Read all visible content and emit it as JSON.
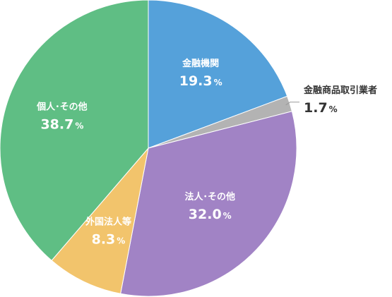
{
  "chart_data": {
    "type": "pie",
    "start_angle_deg": 0,
    "direction": "clockwise",
    "slices": [
      {
        "label": "金融機関",
        "value": 19.3,
        "value_text": "19.3",
        "unit": "%",
        "color": "#55a1da",
        "text_color": "#ffffff",
        "label_placement": "inside"
      },
      {
        "label": "金融商品取引業者",
        "value": 1.7,
        "value_text": "1.7",
        "unit": "%",
        "color": "#b3b3b3",
        "text_color": "#333333",
        "label_placement": "outside"
      },
      {
        "label": "法人･その他",
        "value": 32.0,
        "value_text": "32.0",
        "unit": "%",
        "color": "#a183c5",
        "text_color": "#ffffff",
        "label_placement": "inside"
      },
      {
        "label": "外国法人等",
        "value": 8.3,
        "value_text": "8.3",
        "unit": "%",
        "color": "#f2c46c",
        "text_color": "#ffffff",
        "label_placement": "inside"
      },
      {
        "label": "個人･その他",
        "value": 38.7,
        "value_text": "38.7",
        "unit": "%",
        "color": "#5fbe84",
        "text_color": "#ffffff",
        "label_placement": "inside"
      }
    ]
  }
}
